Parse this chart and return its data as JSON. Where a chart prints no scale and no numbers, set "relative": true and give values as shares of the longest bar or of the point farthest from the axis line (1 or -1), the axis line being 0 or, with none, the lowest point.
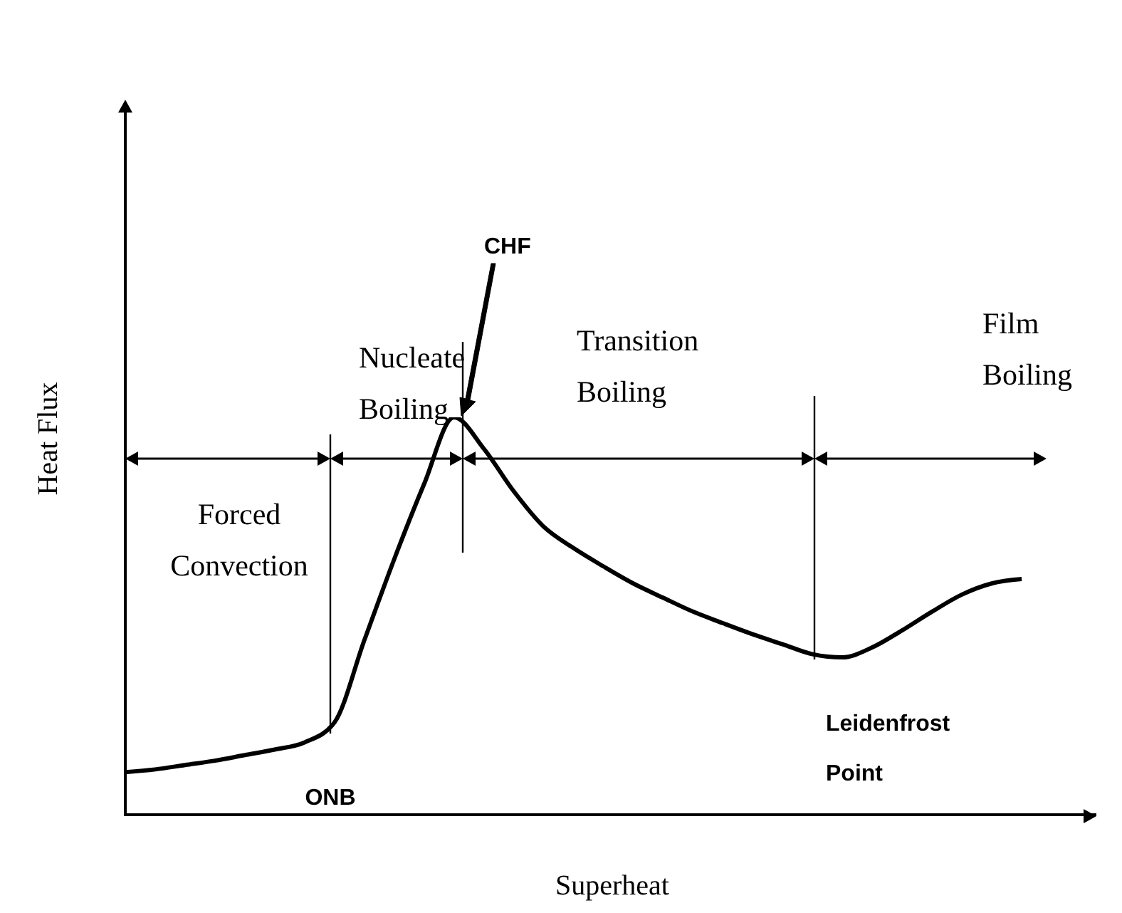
{
  "chart_data": {
    "type": "line",
    "relative": true,
    "xlabel": "Superheat",
    "ylabel": "Heat Flux",
    "categories": [
      null,
      null,
      null,
      null,
      null,
      null,
      null,
      null,
      null,
      null,
      null,
      null,
      null,
      null,
      null,
      null,
      null,
      null,
      null,
      null,
      null,
      null,
      null,
      null,
      null,
      null,
      null,
      null,
      null,
      null,
      null
    ],
    "series": [
      {
        "color": "#000000",
        "values": [
          0.107,
          0.114,
          0.125,
          0.136,
          0.15,
          0.164,
          0.182,
          0.232,
          0.439,
          0.643,
          0.832,
          1,
          0.921,
          0.814,
          0.725,
          0.671,
          0.625,
          0.582,
          0.546,
          0.511,
          0.482,
          0.454,
          0.429,
          0.404,
          0.396,
          0.421,
          0.464,
          0.511,
          0.554,
          0.582,
          0.593
        ]
      }
    ],
    "marker": "none",
    "grid": false,
    "legend": false,
    "tick_labels": false,
    "annotations": [
      "Forced Convection",
      "Nucleate Boiling",
      "Transition Boiling",
      "Film Boiling",
      "CHF",
      "ONB",
      "Leidenfrost Point"
    ]
  }
}
